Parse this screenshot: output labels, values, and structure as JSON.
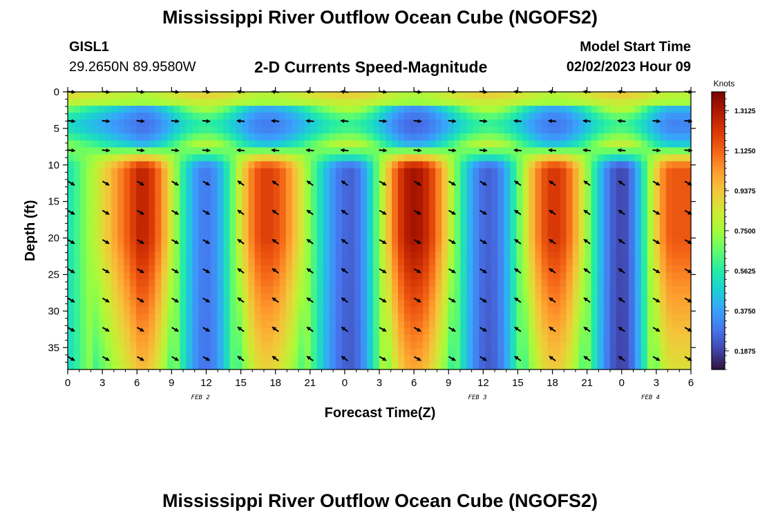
{
  "header": {
    "title": "Mississippi River Outflow Ocean Cube (NGOFS2)",
    "station_id": "GISL1",
    "station_coords": "29.2650N  89.9580W",
    "subtitle": "2-D Currents Speed-Magnitude",
    "model_start_label": "Model Start Time",
    "model_start_value": "02/02/2023 Hour 09"
  },
  "footer": {
    "title": "Mississippi River Outflow Ocean Cube (NGOFS2)"
  },
  "chart_data": {
    "type": "heatmap",
    "title": "2-D Currents Speed-Magnitude",
    "xlabel": "Forecast Time(Z)",
    "ylabel": "Depth (ft)",
    "x_range_hours": [
      0,
      54
    ],
    "ylim": [
      0,
      38
    ],
    "x_ticks": [
      "0",
      "3",
      "6",
      "9",
      "12",
      "15",
      "18",
      "21",
      "0",
      "3",
      "6",
      "9",
      "12",
      "15",
      "18",
      "21",
      "0",
      "3",
      "6"
    ],
    "y_ticks": [
      "0",
      "5",
      "10",
      "15",
      "20",
      "25",
      "30",
      "35"
    ],
    "date_labels": [
      {
        "label": "FEB 2",
        "hour": 11.5
      },
      {
        "label": "FEB 3",
        "hour": 35.5
      },
      {
        "label": "FEB 4",
        "hour": 50.5
      }
    ],
    "colorbar": {
      "title": "Knots",
      "ticks": [
        "0.1875",
        "0.3750",
        "0.5625",
        "0.7500",
        "0.9375",
        "1.1250",
        "1.3125"
      ],
      "min": 0.1,
      "max": 1.4
    },
    "peaks": [
      {
        "hour": 6.3,
        "speed": 1.28
      },
      {
        "hour": 17.2,
        "speed": 1.2
      },
      {
        "hour": 30,
        "speed": 1.33
      },
      {
        "hour": 42.2,
        "speed": 1.22
      },
      {
        "hour": 52.5,
        "speed": 1.15
      }
    ],
    "troughs": [
      {
        "hour": 12,
        "speed": 0.3
      },
      {
        "hour": 24.5,
        "speed": 0.25
      },
      {
        "hour": 36.5,
        "speed": 0.25
      },
      {
        "hour": 48,
        "speed": 0.2
      }
    ],
    "vector_rows_ft": [
      0,
      4,
      8,
      12.5,
      16.5,
      20.5,
      24.5,
      28.5,
      32.5,
      36.5
    ],
    "vector_cols_hours": [
      0.3,
      3.3,
      6.3,
      9.3,
      12,
      15,
      18,
      21,
      24,
      27.3,
      30.3,
      33.3,
      36,
      39,
      42,
      45,
      48,
      51,
      54
    ]
  }
}
